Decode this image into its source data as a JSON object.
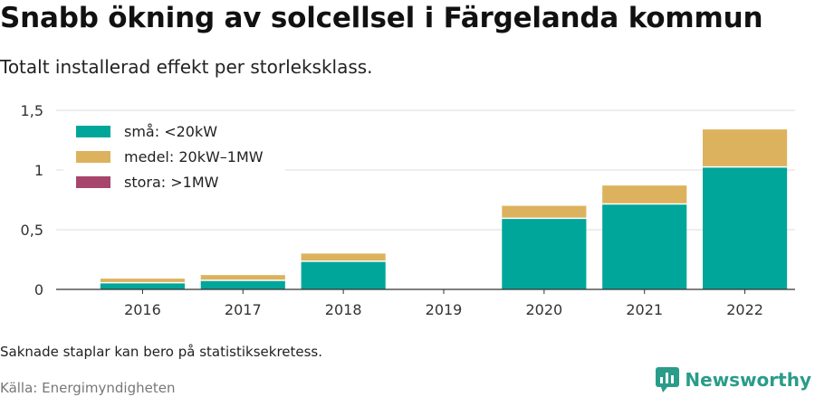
{
  "header": {
    "title": "Snabb ökning av solcellsel i Färgelanda kommun",
    "subtitle": "Totalt installerad effekt per storleksklass."
  },
  "footer": {
    "note": "Saknade staplar kan bero på statistiksekretess.",
    "source": "Källa: Energimyndigheten",
    "brand": "Newsworthy"
  },
  "chart_data": {
    "type": "bar",
    "stacked": true,
    "categories": [
      "2016",
      "2017",
      "2018",
      "2019",
      "2020",
      "2021",
      "2022"
    ],
    "series": [
      {
        "name": "små: <20kW",
        "color": "#00a69a",
        "values": [
          0.05,
          0.07,
          0.23,
          0,
          0.59,
          0.71,
          1.02
        ]
      },
      {
        "name": "medel: 20kW–1MW",
        "color": "#ddb25e",
        "values": [
          0.04,
          0.05,
          0.07,
          0,
          0.11,
          0.16,
          0.32
        ]
      },
      {
        "name": "stora: >1MW",
        "color": "#a8456c",
        "values": [
          0,
          0,
          0,
          0,
          0,
          0,
          0
        ]
      }
    ],
    "ylim": [
      0,
      1.5
    ],
    "yticks": [
      0,
      0.5,
      1,
      1.5
    ],
    "ytick_labels": [
      "0",
      "0,5",
      "1",
      "1,5"
    ],
    "grid": true,
    "legend_position": "top-left"
  }
}
